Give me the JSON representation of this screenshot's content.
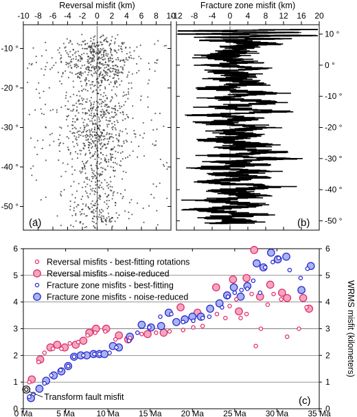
{
  "chart_data": [
    {
      "panel": "a",
      "type": "scatter",
      "title": "Reversal misfit (km)",
      "panel_label": "(a)",
      "x_ticks": [
        -10,
        -8,
        -6,
        -4,
        -2,
        0,
        2,
        4,
        6,
        8,
        10
      ],
      "xlim": [
        -10,
        10
      ],
      "y_ticks": [
        -10,
        -20,
        -30,
        -40,
        -50
      ],
      "y_tick_labels": [
        "-10 °",
        "-20 °",
        "-30 °",
        "-40 °",
        "-50 °"
      ],
      "ylim": [
        -56,
        -4
      ],
      "grid": false,
      "density_profile": [
        {
          "lat": -8,
          "density": 0.6,
          "spread": 2.2
        },
        {
          "lat": -12,
          "density": 1.0,
          "spread": 2.4
        },
        {
          "lat": -16,
          "density": 0.9,
          "spread": 2.2
        },
        {
          "lat": -20,
          "density": 0.25,
          "spread": 2.0
        },
        {
          "lat": -23,
          "density": 0.35,
          "spread": 2.5
        },
        {
          "lat": -26,
          "density": 0.8,
          "spread": 2.4
        },
        {
          "lat": -29,
          "density": 0.35,
          "spread": 2.0
        },
        {
          "lat": -32,
          "density": 0.85,
          "spread": 2.4
        },
        {
          "lat": -36,
          "density": 0.45,
          "spread": 2.2
        },
        {
          "lat": -40,
          "density": 0.35,
          "spread": 2.2
        },
        {
          "lat": -44,
          "density": 0.25,
          "spread": 2.0
        },
        {
          "lat": -48,
          "density": 0.35,
          "spread": 2.2
        },
        {
          "lat": -52,
          "density": 0.3,
          "spread": 2.0
        },
        {
          "lat": -54,
          "density": 0.6,
          "spread": 1.6
        }
      ]
    },
    {
      "panel": "b",
      "type": "line",
      "title": "Fracture zone misfit (km)",
      "panel_label": "(b)",
      "x_ticks": [
        -12,
        -8,
        -4,
        0,
        4,
        8,
        12,
        16,
        20
      ],
      "x_tick_labels": [
        "-12",
        "-8",
        "-4",
        "0",
        "4",
        "8",
        "12",
        "16",
        "20"
      ],
      "xlim": [
        -12,
        20
      ],
      "y_ticks": [
        10,
        0,
        -10,
        -20,
        -30,
        -40,
        -50
      ],
      "y_tick_labels": [
        "10 °",
        "0 °",
        "-10 °",
        "-20 °",
        "-30 °",
        "-40 °",
        "-50 °"
      ],
      "ylim": [
        -53,
        13
      ],
      "grid": false,
      "profile": [
        {
          "lat": 11.5,
          "x": 18
        },
        {
          "lat": 11.0,
          "x": -11
        },
        {
          "lat": 10.5,
          "x": 16
        },
        {
          "lat": 10.0,
          "x": -10
        },
        {
          "lat": 9.5,
          "x": 19
        },
        {
          "lat": 9.0,
          "x": -6
        },
        {
          "lat": 8.5,
          "x": 12
        },
        {
          "lat": 8.0,
          "x": -4
        },
        {
          "lat": 7.0,
          "x": 8
        },
        {
          "lat": 6.0,
          "x": 2
        },
        {
          "lat": 4.0,
          "x": 1
        },
        {
          "lat": 2.5,
          "x": -3
        },
        {
          "lat": 1.0,
          "x": 4
        },
        {
          "lat": 0.0,
          "x": -4
        },
        {
          "lat": -1.0,
          "x": 6
        },
        {
          "lat": -2.0,
          "x": -2
        },
        {
          "lat": -3.0,
          "x": 3
        },
        {
          "lat": -4.5,
          "x": 0
        },
        {
          "lat": -6.0,
          "x": 5
        },
        {
          "lat": -7.5,
          "x": -5
        },
        {
          "lat": -9.0,
          "x": 8
        },
        {
          "lat": -10.5,
          "x": -3
        },
        {
          "lat": -12.0,
          "x": 10
        },
        {
          "lat": -13.5,
          "x": -2
        },
        {
          "lat": -15.0,
          "x": 11
        },
        {
          "lat": -16.0,
          "x": -6
        },
        {
          "lat": -17.0,
          "x": 6
        },
        {
          "lat": -18.5,
          "x": -4
        },
        {
          "lat": -20.0,
          "x": 8
        },
        {
          "lat": -21.0,
          "x": -1
        },
        {
          "lat": -22.5,
          "x": 5
        },
        {
          "lat": -24.0,
          "x": -5
        },
        {
          "lat": -25.5,
          "x": 7
        },
        {
          "lat": -26.5,
          "x": 0
        },
        {
          "lat": -28.0,
          "x": 9
        },
        {
          "lat": -29.0,
          "x": -3
        },
        {
          "lat": -30.0,
          "x": 12
        },
        {
          "lat": -31.0,
          "x": -2
        },
        {
          "lat": -32.0,
          "x": 6
        },
        {
          "lat": -33.0,
          "x": -6
        },
        {
          "lat": -34.0,
          "x": 8
        },
        {
          "lat": -35.0,
          "x": -2
        },
        {
          "lat": -36.0,
          "x": 7
        },
        {
          "lat": -37.5,
          "x": -5
        },
        {
          "lat": -39.0,
          "x": 10
        },
        {
          "lat": -40.5,
          "x": -3
        },
        {
          "lat": -42.0,
          "x": 7
        },
        {
          "lat": -43.5,
          "x": -4
        },
        {
          "lat": -45.0,
          "x": 6
        },
        {
          "lat": -46.5,
          "x": -7
        },
        {
          "lat": -48.0,
          "x": 5
        },
        {
          "lat": -49.0,
          "x": -4
        },
        {
          "lat": -50.0,
          "x": 3
        },
        {
          "lat": -51.0,
          "x": -2
        }
      ]
    },
    {
      "panel": "c",
      "type": "scatter",
      "panel_label": "(c)",
      "ylabel": "WRMS misfit (kilometers)",
      "x_ticks": [
        0,
        5,
        10,
        15,
        20,
        25,
        30,
        35
      ],
      "x_tick_labels": [
        "0 Ma",
        "5 Ma",
        "10 Ma",
        "15 Ma",
        "20 Ma",
        "25 Ma",
        "30 Ma",
        "35 Ma"
      ],
      "xlim": [
        0,
        35
      ],
      "y_ticks": [
        0,
        1,
        2,
        3,
        4,
        5,
        6
      ],
      "y_tick_labels": [
        "0",
        "1",
        "2",
        "3",
        "4",
        "5",
        "6"
      ],
      "ylim": [
        0,
        6
      ],
      "grid": "horizontal",
      "legend_position": "top-left",
      "colors": {
        "reversal": "#e0306a",
        "reversal_fill": "#f4a6c0",
        "fracture": "#2a2ad0",
        "fracture_fill": "#a8b4f0",
        "transform": "#000000"
      },
      "series": [
        {
          "name": "Reversal misfits - best-fitting rotations",
          "style": "small-open",
          "color": "#e0306a",
          "x": [
            0.7,
            1.8,
            2.5,
            3.5,
            4.5,
            5.5,
            6.5,
            7.6,
            8.5,
            9.7,
            10.9,
            12.6,
            14.0,
            15.7,
            17.3,
            18.9,
            20.1,
            21.2,
            22.9,
            23.9,
            24.4,
            25.2,
            25.7,
            26.4,
            27.0,
            27.5,
            28.1,
            28.9,
            29.6,
            30.5,
            31.2,
            32.6,
            33.5
          ],
          "y": [
            1.0,
            1.75,
            2.1,
            2.25,
            2.25,
            2.45,
            2.5,
            2.75,
            2.85,
            2.9,
            2.6,
            2.65,
            2.8,
            2.85,
            2.9,
            2.95,
            3.05,
            3.1,
            3.55,
            3.4,
            3.85,
            4.1,
            3.4,
            3.55,
            4.3,
            2.35,
            3.0,
            3.9,
            4.3,
            4.1,
            2.7,
            3.0,
            3.8
          ]
        },
        {
          "name": "Reversal misfits - noise-reduced",
          "style": "large-filled",
          "color": "#e0306a",
          "x": [
            1.0,
            2.0,
            3.2,
            4.0,
            4.9,
            6.2,
            7.1,
            7.8,
            8.6,
            9.8,
            11.3,
            12.4,
            14.7,
            16.6,
            18.6,
            20.6,
            22.8,
            24.8,
            25.5,
            26.4,
            27.3,
            28.0,
            29.2,
            30.6,
            31.2,
            33.1,
            33.8
          ],
          "y": [
            1.1,
            1.85,
            2.3,
            2.4,
            2.3,
            2.4,
            2.55,
            2.85,
            3.0,
            3.0,
            2.75,
            2.6,
            2.8,
            2.85,
            3.8,
            3.6,
            4.55,
            4.85,
            3.65,
            4.9,
            5.95,
            4.2,
            4.65,
            4.35,
            4.15,
            4.15,
            3.75
          ]
        },
        {
          "name": "Fracture zone misfits - best-fitting",
          "style": "small-open",
          "color": "#2a2ad0",
          "x": [
            0.7,
            1.2,
            2.5,
            3.3,
            4.4,
            5.3,
            6.0,
            7.1,
            8.4,
            9.0,
            10.2,
            11.0,
            12.5,
            13.5,
            14.9,
            16.2,
            17.5,
            18.9,
            20.1,
            21.2,
            22.0,
            23.5,
            24.2,
            25.0,
            25.8,
            26.5,
            27.2,
            28.0,
            28.6,
            29.5,
            30.2,
            31.5,
            32.8,
            33.6
          ],
          "y": [
            0.45,
            0.55,
            0.95,
            1.25,
            1.45,
            1.6,
            1.95,
            2.0,
            2.05,
            2.05,
            2.1,
            2.3,
            2.55,
            2.85,
            3.05,
            3.45,
            3.55,
            3.25,
            3.3,
            3.4,
            3.45,
            3.8,
            4.2,
            4.35,
            4.45,
            4.5,
            4.8,
            4.35,
            5.3,
            5.5,
            5.65,
            5.2,
            4.9,
            5.25
          ]
        },
        {
          "name": "Fracture zone misfits - noise-reduced",
          "style": "large-filled",
          "color": "#2a2ad0",
          "x": [
            0.9,
            1.9,
            2.7,
            3.6,
            4.5,
            5.3,
            6.0,
            6.8,
            7.5,
            8.3,
            9.0,
            9.6,
            10.6,
            11.3,
            12.6,
            14.0,
            15.1,
            16.3,
            17.2,
            18.1,
            19.1,
            20.0,
            21.0,
            22.1,
            23.2,
            24.1,
            24.9,
            25.7,
            26.5,
            27.6,
            28.4,
            29.3,
            30.1,
            31.1,
            32.9,
            34.0
          ],
          "y": [
            0.4,
            0.75,
            1.05,
            1.25,
            1.4,
            1.6,
            1.95,
            2.0,
            2.0,
            2.05,
            2.05,
            2.05,
            2.35,
            2.3,
            2.7,
            3.15,
            3.05,
            3.1,
            3.6,
            3.25,
            3.35,
            3.45,
            3.45,
            3.75,
            3.95,
            4.25,
            4.55,
            4.2,
            4.6,
            5.45,
            5.3,
            5.85,
            5.6,
            5.7,
            4.45,
            5.35
          ]
        },
        {
          "name": "Transform fault misfit",
          "style": "double-ring",
          "color": "#000000",
          "x": [
            0.35
          ],
          "y": [
            0.72
          ]
        }
      ],
      "annotation": "Transform fault misfit"
    }
  ]
}
